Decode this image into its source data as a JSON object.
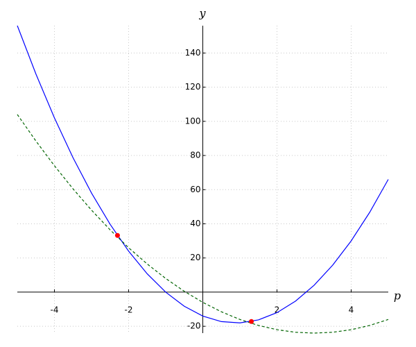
{
  "chart_data": {
    "type": "line",
    "x_label": "p",
    "y_label": "y",
    "x": [
      -5,
      -4.5,
      -4,
      -3.5,
      -3,
      -2.5,
      -2,
      -1.5,
      -1,
      -0.5,
      0,
      0.5,
      1,
      1.5,
      2,
      2.5,
      3,
      3.5,
      4,
      4.5,
      5
    ],
    "series": [
      {
        "color": "#0000ff",
        "style": "solid",
        "values": [
          156,
          127.75,
          102,
          78.75,
          58,
          39.75,
          24,
          10.75,
          0,
          -8.25,
          -14,
          -17.25,
          -18,
          -16.25,
          -12,
          -5.25,
          4,
          15.75,
          30,
          46.75,
          66
        ]
      },
      {
        "color": "#006400",
        "style": "dashed",
        "values": [
          104,
          88.5,
          74,
          60.5,
          48,
          36.5,
          26,
          16.5,
          8,
          0.5,
          -6,
          -11.5,
          -16,
          -19.5,
          -22,
          -23.5,
          -24,
          -23.5,
          -22,
          -19.5,
          -16
        ]
      }
    ],
    "points": {
      "color": "#ff0000",
      "x": [
        -2.3,
        1.31
      ],
      "y": [
        33.2,
        -17.2
      ]
    },
    "xlim": [
      -5,
      5
    ],
    "ylim": [
      -24,
      156
    ],
    "xticks": [
      -4,
      -2,
      2,
      4
    ],
    "yticks": [
      -20,
      20,
      40,
      60,
      80,
      100,
      120,
      140
    ],
    "grid": true
  }
}
